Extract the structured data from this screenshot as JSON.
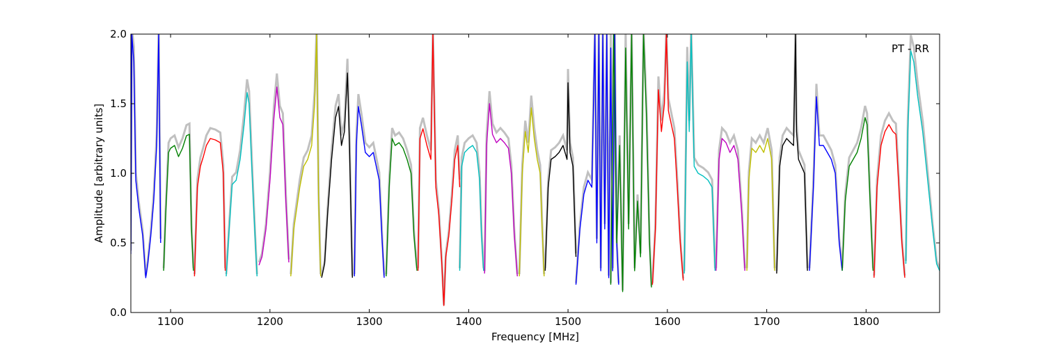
{
  "chart_data": {
    "type": "line",
    "title": "",
    "xlabel": "Frequency [MHz]",
    "ylabel": "Amplitude [arbitrary units]",
    "xlim": [
      1060,
      1874
    ],
    "ylim": [
      0.0,
      2.0
    ],
    "x_ticks": [
      1100,
      1200,
      1300,
      1400,
      1500,
      1600,
      1700,
      1800
    ],
    "x_tick_labels": [
      "1100",
      "1200",
      "1300",
      "1400",
      "1500",
      "1600",
      "1700",
      "1800"
    ],
    "y_ticks": [
      0.0,
      0.5,
      1.0,
      1.5,
      2.0
    ],
    "y_tick_labels": [
      "0.0",
      "0.5",
      "1.0",
      "1.5",
      "2.0"
    ],
    "annotation": "PT - RR",
    "grid": false,
    "background_color": "#c0c0c0",
    "series": [
      {
        "color": "#0000ff",
        "x": [
          1060,
          1061,
          1063,
          1065,
          1068,
          1072,
          1075,
          1077,
          1080,
          1083,
          1086,
          1088,
          1090
        ],
        "y": [
          0.42,
          2.0,
          1.8,
          0.95,
          0.75,
          0.55,
          0.25,
          0.35,
          0.55,
          0.8,
          1.2,
          2.0,
          0.5
        ]
      },
      {
        "color": "#008000",
        "x": [
          1093,
          1095,
          1098,
          1100,
          1104,
          1108,
          1112,
          1116,
          1119,
          1121,
          1123
        ],
        "y": [
          0.3,
          0.7,
          1.15,
          1.18,
          1.2,
          1.12,
          1.18,
          1.27,
          1.28,
          0.6,
          0.3
        ]
      },
      {
        "color": "#ff0000",
        "x": [
          1124,
          1127,
          1130,
          1133,
          1136,
          1140,
          1145,
          1150,
          1153,
          1155
        ],
        "y": [
          0.26,
          0.9,
          1.05,
          1.12,
          1.2,
          1.25,
          1.24,
          1.22,
          1.0,
          0.3
        ]
      },
      {
        "color": "#00bfbf",
        "x": [
          1156,
          1159,
          1162,
          1166,
          1170,
          1174,
          1177,
          1179,
          1182,
          1185,
          1187
        ],
        "y": [
          0.26,
          0.6,
          0.92,
          0.95,
          1.1,
          1.35,
          1.58,
          1.5,
          1.0,
          0.55,
          0.26
        ]
      },
      {
        "color": "#bf00bf",
        "x": [
          1189,
          1192,
          1196,
          1200,
          1204,
          1207,
          1210,
          1213,
          1216,
          1219
        ],
        "y": [
          0.34,
          0.4,
          0.6,
          0.95,
          1.4,
          1.62,
          1.4,
          1.35,
          0.8,
          0.36
        ]
      },
      {
        "color": "#bfbf00",
        "x": [
          1221,
          1224,
          1227,
          1230,
          1234,
          1238,
          1242,
          1245,
          1247,
          1249,
          1251
        ],
        "y": [
          0.26,
          0.6,
          0.75,
          0.9,
          1.05,
          1.1,
          1.2,
          1.5,
          2.0,
          0.8,
          0.26
        ]
      },
      {
        "color": "#000000",
        "x": [
          1252,
          1255,
          1258,
          1262,
          1266,
          1269,
          1272,
          1275,
          1278,
          1280,
          1283
        ],
        "y": [
          0.25,
          0.35,
          0.7,
          1.1,
          1.4,
          1.48,
          1.2,
          1.3,
          1.72,
          1.2,
          0.25
        ]
      },
      {
        "color": "#0000ff",
        "x": [
          1285,
          1287,
          1289,
          1292,
          1296,
          1300,
          1304,
          1307,
          1310,
          1313,
          1315
        ],
        "y": [
          0.26,
          1.2,
          1.48,
          1.35,
          1.15,
          1.12,
          1.15,
          1.05,
          0.95,
          0.5,
          0.25
        ]
      },
      {
        "color": "#008000",
        "x": [
          1317,
          1320,
          1323,
          1326,
          1330,
          1334,
          1338,
          1342,
          1345,
          1348
        ],
        "y": [
          0.26,
          0.9,
          1.25,
          1.2,
          1.22,
          1.18,
          1.1,
          1.0,
          0.55,
          0.3
        ]
      },
      {
        "color": "#ff0000",
        "x": [
          1349,
          1351,
          1354,
          1358,
          1362,
          1364,
          1367,
          1370,
          1373,
          1375,
          1377,
          1380,
          1383,
          1386,
          1389,
          1391
        ],
        "y": [
          0.3,
          1.25,
          1.32,
          1.2,
          1.1,
          2.0,
          0.9,
          0.7,
          0.35,
          0.05,
          0.4,
          0.55,
          0.8,
          1.1,
          1.2,
          0.9
        ]
      },
      {
        "color": "#00bfbf",
        "x": [
          1391,
          1393,
          1396,
          1400,
          1404,
          1408,
          1411,
          1413,
          1415
        ],
        "y": [
          0.3,
          1.05,
          1.15,
          1.18,
          1.2,
          1.15,
          0.95,
          0.55,
          0.3
        ]
      },
      {
        "color": "#bf00bf",
        "x": [
          1416,
          1418,
          1421,
          1424,
          1428,
          1432,
          1436,
          1440,
          1443,
          1446,
          1449
        ],
        "y": [
          0.28,
          1.2,
          1.5,
          1.28,
          1.22,
          1.25,
          1.22,
          1.18,
          1.0,
          0.55,
          0.26
        ]
      },
      {
        "color": "#bfbf00",
        "x": [
          1451,
          1454,
          1457,
          1460,
          1463,
          1466,
          1469,
          1472,
          1474,
          1476
        ],
        "y": [
          0.26,
          1.0,
          1.3,
          1.15,
          1.47,
          1.25,
          1.1,
          1.0,
          0.6,
          0.26
        ]
      },
      {
        "color": "#000000",
        "x": [
          1477,
          1480,
          1483,
          1487,
          1491,
          1495,
          1499,
          1500,
          1502,
          1505,
          1508
        ],
        "y": [
          0.3,
          0.9,
          1.1,
          1.12,
          1.15,
          1.2,
          1.1,
          1.65,
          1.15,
          1.05,
          0.4
        ]
      },
      {
        "color": "#0000ff",
        "x": [
          1508,
          1512,
          1516,
          1520,
          1524,
          1527,
          1529,
          1531,
          1533,
          1535,
          1537,
          1539,
          1541,
          1543,
          1545,
          1547,
          1549,
          1551
        ],
        "y": [
          0.2,
          0.6,
          0.85,
          0.95,
          0.9,
          2.0,
          0.5,
          2.0,
          0.3,
          2.0,
          0.6,
          2.0,
          0.25,
          1.9,
          0.3,
          2.0,
          0.5,
          0.2
        ]
      },
      {
        "color": "#008000",
        "x": [
          1543,
          1546,
          1549,
          1552,
          1555,
          1558,
          1561,
          1564,
          1567,
          1570,
          1573,
          1576,
          1579,
          1582,
          1584
        ],
        "y": [
          0.2,
          2.0,
          0.5,
          1.2,
          0.15,
          1.9,
          0.6,
          2.0,
          0.3,
          0.8,
          0.4,
          2.0,
          1.4,
          0.5,
          0.18
        ]
      },
      {
        "color": "#ff0000",
        "x": [
          1585,
          1588,
          1591,
          1594,
          1597,
          1599,
          1601,
          1604,
          1607,
          1610,
          1613,
          1616
        ],
        "y": [
          0.2,
          0.6,
          1.6,
          1.3,
          1.5,
          2.0,
          1.45,
          1.35,
          1.25,
          0.9,
          0.5,
          0.23
        ]
      },
      {
        "color": "#00bfbf",
        "x": [
          1617,
          1620,
          1622,
          1624,
          1627,
          1631,
          1636,
          1641,
          1645,
          1648
        ],
        "y": [
          0.28,
          1.8,
          1.3,
          2.0,
          1.05,
          1.0,
          0.98,
          0.95,
          0.9,
          0.3
        ]
      },
      {
        "color": "#bf00bf",
        "x": [
          1649,
          1652,
          1655,
          1659,
          1663,
          1667,
          1671,
          1675,
          1678
        ],
        "y": [
          0.3,
          1.1,
          1.25,
          1.22,
          1.15,
          1.2,
          1.1,
          0.7,
          0.3
        ]
      },
      {
        "color": "#bfbf00",
        "x": [
          1680,
          1682,
          1685,
          1689,
          1693,
          1697,
          1701,
          1705,
          1708
        ],
        "y": [
          0.3,
          0.95,
          1.18,
          1.15,
          1.2,
          1.15,
          1.25,
          1.1,
          0.3
        ]
      },
      {
        "color": "#000000",
        "x": [
          1710,
          1713,
          1716,
          1720,
          1724,
          1727,
          1729,
          1730,
          1732,
          1735,
          1738,
          1741
        ],
        "y": [
          0.28,
          1.05,
          1.2,
          1.25,
          1.22,
          1.2,
          2.0,
          1.3,
          1.1,
          1.05,
          1.0,
          0.3
        ]
      },
      {
        "color": "#0000ff",
        "x": [
          1743,
          1747,
          1750,
          1753,
          1757,
          1761,
          1765,
          1769,
          1773,
          1776
        ],
        "y": [
          0.3,
          0.9,
          1.55,
          1.2,
          1.2,
          1.15,
          1.1,
          1.0,
          0.5,
          0.3
        ]
      },
      {
        "color": "#008000",
        "x": [
          1776,
          1779,
          1783,
          1787,
          1791,
          1795,
          1799,
          1801,
          1804,
          1807
        ],
        "y": [
          0.3,
          0.8,
          1.05,
          1.1,
          1.15,
          1.25,
          1.4,
          1.35,
          0.8,
          0.3
        ]
      },
      {
        "color": "#ff0000",
        "x": [
          1808,
          1811,
          1815,
          1819,
          1823,
          1827,
          1830,
          1833,
          1836,
          1839
        ],
        "y": [
          0.25,
          0.9,
          1.2,
          1.3,
          1.35,
          1.3,
          1.28,
          0.9,
          0.5,
          0.25
        ]
      },
      {
        "color": "#00bfbf",
        "x": [
          1840,
          1842,
          1845,
          1848,
          1852,
          1857,
          1862,
          1867,
          1871,
          1874
        ],
        "y": [
          0.35,
          1.3,
          1.88,
          1.8,
          1.55,
          1.3,
          0.95,
          0.6,
          0.35,
          0.3
        ]
      }
    ]
  }
}
